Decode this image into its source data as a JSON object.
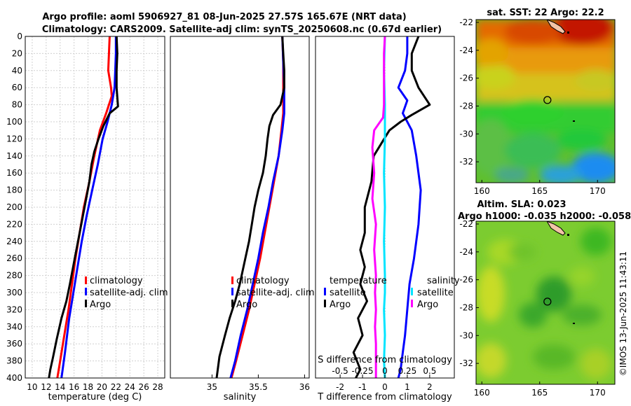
{
  "title": {
    "line1": "Argo profile: aoml 5906927_81 08-Jun-2025 27.57S 165.67E (NRT data)",
    "line2": "Climatology: CARS2009. Satellite-adj clim: synTS_20250608.nc (0.67d earlier)"
  },
  "watermark": "©IMOS 13-Jun-2025 11:43:11",
  "colors": {
    "climatology": "#ff0000",
    "satellite": "#0000ff",
    "argo": "#000000",
    "s_satellite": "#00e5ff",
    "s_argo": "#ff00ff",
    "land": "#f2c4a8"
  },
  "chart_data": [
    {
      "id": "temperature",
      "type": "line",
      "xlabel": "temperature (deg C)",
      "ylabel": "",
      "xlim": [
        9,
        29
      ],
      "ylim": [
        400,
        0
      ],
      "xticks": [
        10,
        12,
        14,
        16,
        18,
        20,
        22,
        24,
        26,
        28
      ],
      "yticks": [
        0,
        20,
        40,
        60,
        80,
        100,
        120,
        140,
        160,
        180,
        200,
        220,
        240,
        260,
        280,
        300,
        320,
        340,
        360,
        380,
        400
      ],
      "grid": true,
      "legend": [
        "climatology",
        "satellite-adj. clim",
        "Argo"
      ],
      "series": [
        {
          "name": "climatology",
          "color": "#ff0000",
          "x": [
            21.1,
            21.0,
            20.9,
            21.3,
            21.4,
            20.6,
            19.7,
            18.9,
            18.2,
            17.4,
            16.8,
            16.2,
            15.7,
            15.2,
            14.6,
            14.0,
            13.6
          ],
          "y": [
            0,
            20,
            40,
            60,
            70,
            90,
            110,
            140,
            170,
            200,
            230,
            260,
            290,
            320,
            350,
            380,
            400
          ]
        },
        {
          "name": "satellite-adj. clim",
          "color": "#0000ff",
          "x": [
            22.0,
            22.0,
            21.9,
            21.8,
            21.4,
            20.8,
            20.1,
            19.4,
            18.6,
            17.8,
            17.1,
            16.5,
            15.9,
            15.3,
            14.7,
            14.2
          ],
          "y": [
            0,
            20,
            40,
            60,
            80,
            100,
            120,
            150,
            180,
            210,
            240,
            270,
            300,
            330,
            370,
            400
          ]
        },
        {
          "name": "Argo",
          "color": "#000000",
          "x": [
            22.1,
            22.2,
            22.1,
            22.1,
            22.3,
            21.1,
            20.2,
            19.5,
            18.9,
            18.5,
            18.2,
            17.5,
            16.8,
            16.1,
            15.4,
            14.9,
            14.2,
            13.5,
            13.0,
            12.6,
            12.4
          ],
          "y": [
            0,
            20,
            40,
            60,
            82,
            90,
            105,
            120,
            135,
            150,
            170,
            200,
            230,
            260,
            290,
            310,
            330,
            355,
            375,
            390,
            400
          ]
        }
      ]
    },
    {
      "id": "salinity",
      "type": "line",
      "xlabel": "salinity",
      "ylabel": "",
      "xlim": [
        34.55,
        36.05
      ],
      "ylim": [
        400,
        0
      ],
      "xticks": [
        35,
        35.5,
        36
      ],
      "grid": false,
      "legend": [
        "climatology",
        "satellite-adj. clim",
        "Argo"
      ],
      "series": [
        {
          "name": "climatology",
          "color": "#ff0000",
          "x": [
            35.76,
            35.77,
            35.77,
            35.77,
            35.75,
            35.72,
            35.67,
            35.62,
            35.57,
            35.52,
            35.46,
            35.4,
            35.33,
            35.26,
            35.21
          ],
          "y": [
            0,
            30,
            60,
            90,
            110,
            140,
            170,
            200,
            230,
            260,
            290,
            320,
            350,
            380,
            400
          ]
        },
        {
          "name": "satellite-adj. clim",
          "color": "#0000ff",
          "x": [
            35.76,
            35.77,
            35.78,
            35.78,
            35.76,
            35.72,
            35.66,
            35.61,
            35.55,
            35.5,
            35.44,
            35.38,
            35.31,
            35.25,
            35.2
          ],
          "y": [
            0,
            30,
            60,
            90,
            110,
            140,
            170,
            200,
            230,
            260,
            290,
            320,
            350,
            380,
            400
          ]
        },
        {
          "name": "Argo",
          "color": "#000000",
          "x": [
            35.76,
            35.77,
            35.78,
            35.78,
            35.74,
            35.66,
            35.62,
            35.6,
            35.58,
            35.55,
            35.5,
            35.46,
            35.43,
            35.4,
            35.36,
            35.3,
            35.25,
            35.19,
            35.14,
            35.08,
            35.05
          ],
          "y": [
            0,
            20,
            40,
            60,
            80,
            92,
            105,
            120,
            140,
            160,
            180,
            200,
            220,
            240,
            260,
            290,
            310,
            330,
            350,
            375,
            400
          ]
        }
      ]
    },
    {
      "id": "difference",
      "type": "line",
      "xlabel": "T difference from climatology",
      "x2label": "S difference from climatology",
      "ylabel": "",
      "xlim": [
        -3.1,
        3.1
      ],
      "x2lim": [
        -0.775,
        0.775
      ],
      "ylim": [
        400,
        0
      ],
      "xticks": [
        -2,
        -1,
        0,
        1,
        2
      ],
      "x2ticks": [
        -0.5,
        -0.25,
        0,
        0.25,
        0.5
      ],
      "grid": false,
      "legend_temperature_title": "temperature",
      "legend_salinity_title": "salinity",
      "legend_temperature": [
        "satellite",
        "Argo"
      ],
      "legend_salinity": [
        "satellite",
        "Argo"
      ],
      "series": [
        {
          "name": "T satellite",
          "color": "#0000ff",
          "axis": "T",
          "x": [
            1.0,
            1.0,
            0.9,
            0.6,
            1.0,
            0.8,
            1.2,
            1.4,
            1.6,
            1.5,
            1.3,
            1.1,
            1.0,
            0.9,
            0.8,
            0.7,
            0.6
          ],
          "y": [
            0,
            20,
            40,
            60,
            75,
            90,
            110,
            140,
            180,
            220,
            260,
            290,
            320,
            350,
            370,
            390,
            400
          ]
        },
        {
          "name": "T Argo",
          "color": "#000000",
          "axis": "T",
          "x": [
            1.5,
            1.2,
            1.2,
            1.5,
            2.0,
            1.2,
            0.7,
            0.2,
            -0.5,
            -0.6,
            -0.9,
            -0.9,
            -1.1,
            -0.9,
            -1.1,
            -0.8,
            -1.2,
            -1.0,
            -1.4,
            -1.1,
            -1.3
          ],
          "y": [
            0,
            20,
            40,
            60,
            80,
            92,
            100,
            110,
            140,
            170,
            200,
            230,
            250,
            270,
            290,
            310,
            330,
            350,
            370,
            390,
            400
          ]
        },
        {
          "name": "S satellite",
          "color": "#00e5ff",
          "axis": "S",
          "x": [
            0.0,
            -0.01,
            0.0,
            0.0,
            -0.01,
            0.0,
            -0.01,
            0.0,
            0.0,
            -0.01,
            0.0,
            -0.01,
            0.0
          ],
          "y": [
            0,
            40,
            80,
            120,
            160,
            200,
            240,
            280,
            300,
            320,
            350,
            380,
            400
          ]
        },
        {
          "name": "S Argo",
          "color": "#ff00ff",
          "axis": "S",
          "x": [
            0.0,
            -0.01,
            -0.01,
            -0.01,
            -0.01,
            -0.02,
            -0.12,
            -0.14,
            -0.12,
            -0.14,
            -0.1,
            -0.12,
            -0.1,
            -0.11,
            -0.1,
            -0.11,
            -0.1,
            -0.1,
            -0.1,
            -0.1
          ],
          "y": [
            0,
            20,
            40,
            60,
            80,
            95,
            110,
            130,
            160,
            190,
            220,
            250,
            280,
            300,
            320,
            340,
            360,
            380,
            395,
            400
          ]
        }
      ]
    },
    {
      "id": "sst_map",
      "type": "heatmap",
      "title": "sat. SST: 22 Argo: 22.2",
      "xlim": [
        159.5,
        171.5
      ],
      "ylim": [
        -33.5,
        -21.8
      ],
      "xticks": [
        160,
        165,
        170
      ],
      "yticks": [
        -22,
        -24,
        -26,
        -28,
        -30,
        -32
      ],
      "argo_position": {
        "lon": 165.67,
        "lat": -27.57
      }
    },
    {
      "id": "sla_map",
      "type": "heatmap",
      "title": "Altim. SLA: 0.023",
      "subtitle": "Argo h1000: -0.035 h2000: -0.058",
      "xlim": [
        159.5,
        171.5
      ],
      "ylim": [
        -33.5,
        -21.8
      ],
      "xticks": [
        160,
        165,
        170
      ],
      "yticks": [
        -22,
        -24,
        -26,
        -28,
        -30,
        -32
      ],
      "argo_position": {
        "lon": 165.67,
        "lat": -27.57
      }
    }
  ]
}
